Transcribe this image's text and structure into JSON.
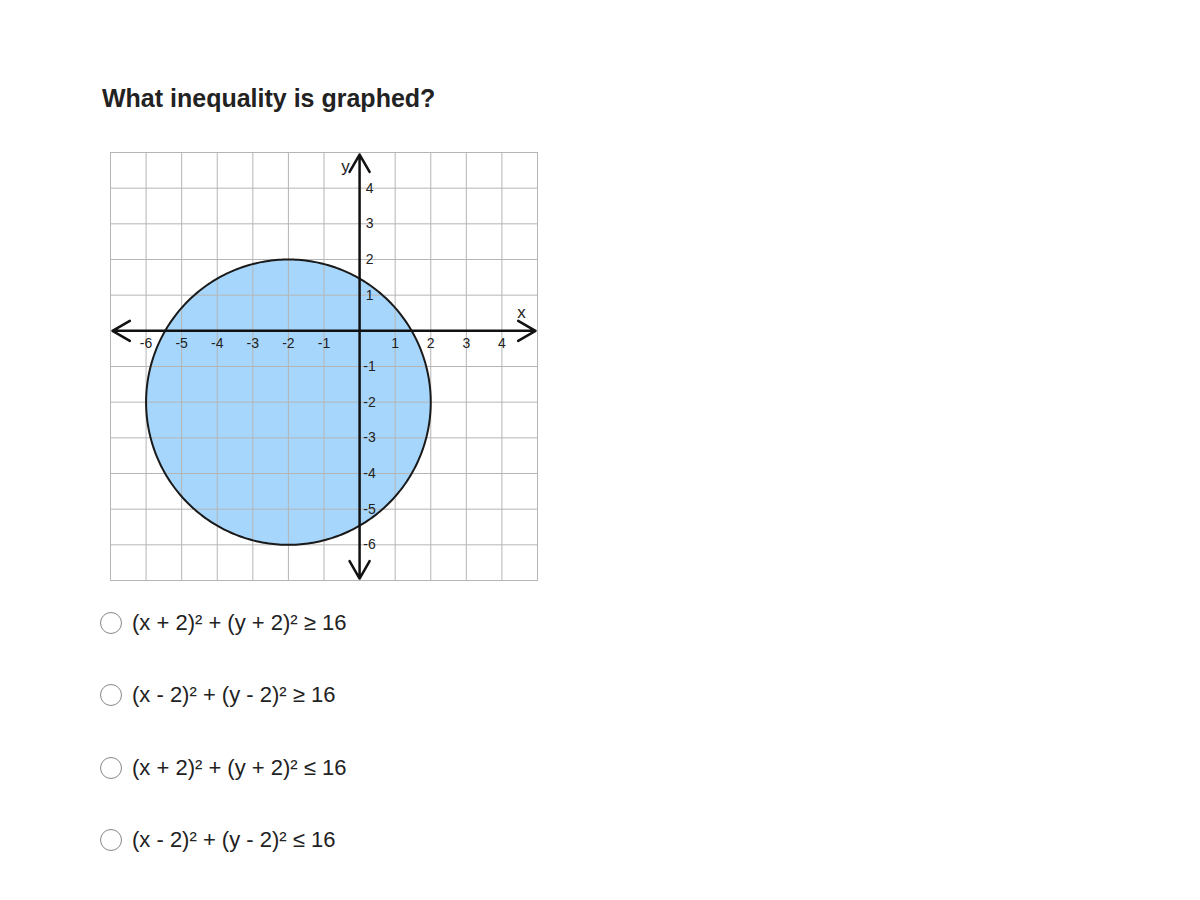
{
  "question": "What inequality is graphed?",
  "options": [
    "(x + 2)² + (y + 2)² ≥ 16",
    "(x - 2)² + (y - 2)² ≥ 16",
    "(x + 2)² + (y + 2)² ≤ 16",
    "(x - 2)² + (y - 2)² ≤ 16"
  ],
  "chart_data": {
    "type": "circle_region",
    "xlabel": "x",
    "ylabel": "y",
    "xlim": [
      -7,
      5
    ],
    "ylim": [
      -7,
      5
    ],
    "xticks": [
      -6,
      -5,
      -4,
      -3,
      -2,
      -1,
      1,
      2,
      3,
      4
    ],
    "yticks": [
      -6,
      -5,
      -4,
      -3,
      -2,
      -1,
      1,
      2,
      3,
      4
    ],
    "grid": true,
    "center": [
      -2,
      -2
    ],
    "radius": 4,
    "color": "#a6d6fb"
  }
}
